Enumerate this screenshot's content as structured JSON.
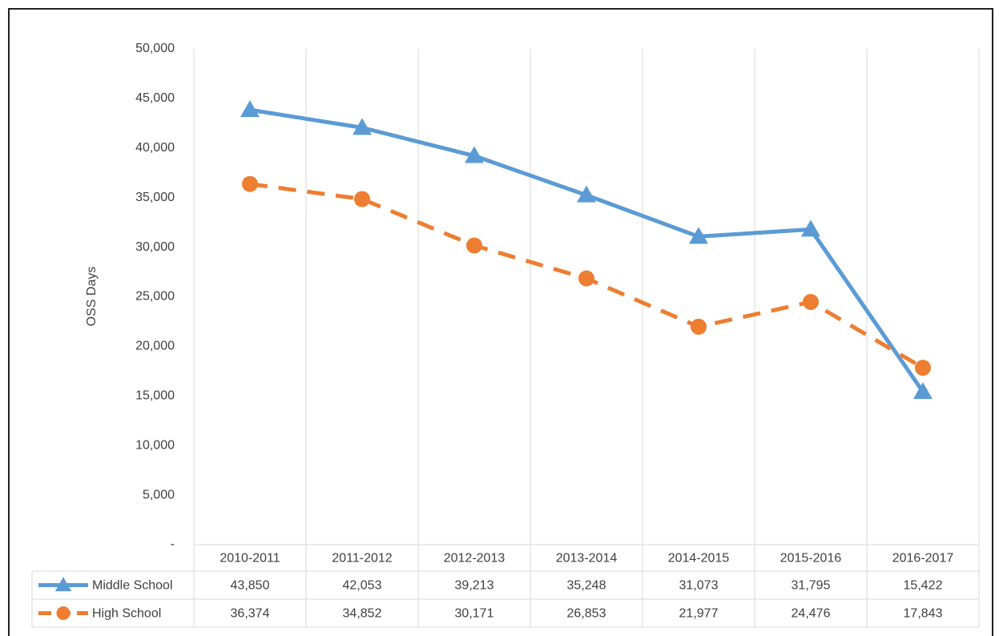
{
  "chart_data": {
    "type": "line",
    "y_label": "OSS Days",
    "categories": [
      "2010-2011",
      "2011-2012",
      "2012-2013",
      "2013-2014",
      "2014-2015",
      "2015-2016",
      "2016-2017"
    ],
    "series": [
      {
        "name": "Middle School",
        "color": "#5b9bd5",
        "line_style": "solid",
        "marker": "triangle",
        "values": [
          43850,
          42053,
          39213,
          35248,
          31073,
          31795,
          15422
        ],
        "value_labels": [
          "43,850",
          "42,053",
          "39,213",
          "35,248",
          "31,073",
          "31,795",
          "15,422"
        ]
      },
      {
        "name": "High School",
        "color": "#ed7d31",
        "line_style": "dashed",
        "marker": "circle",
        "values": [
          36374,
          34852,
          30171,
          26853,
          21977,
          24476,
          17843
        ],
        "value_labels": [
          "36,374",
          "34,852",
          "30,171",
          "26,853",
          "21,977",
          "24,476",
          "17,843"
        ]
      }
    ],
    "ylim": [
      0,
      50000
    ],
    "yticks": [
      {
        "value": 0,
        "label": "-"
      },
      {
        "value": 5000,
        "label": "5,000"
      },
      {
        "value": 10000,
        "label": "10,000"
      },
      {
        "value": 15000,
        "label": "15,000"
      },
      {
        "value": 20000,
        "label": "20,000"
      },
      {
        "value": 25000,
        "label": "25,000"
      },
      {
        "value": 30000,
        "label": "30,000"
      },
      {
        "value": 35000,
        "label": "35,000"
      },
      {
        "value": 40000,
        "label": "40,000"
      },
      {
        "value": 45000,
        "label": "45,000"
      },
      {
        "value": 50000,
        "label": "50,000"
      }
    ],
    "grid": true
  }
}
